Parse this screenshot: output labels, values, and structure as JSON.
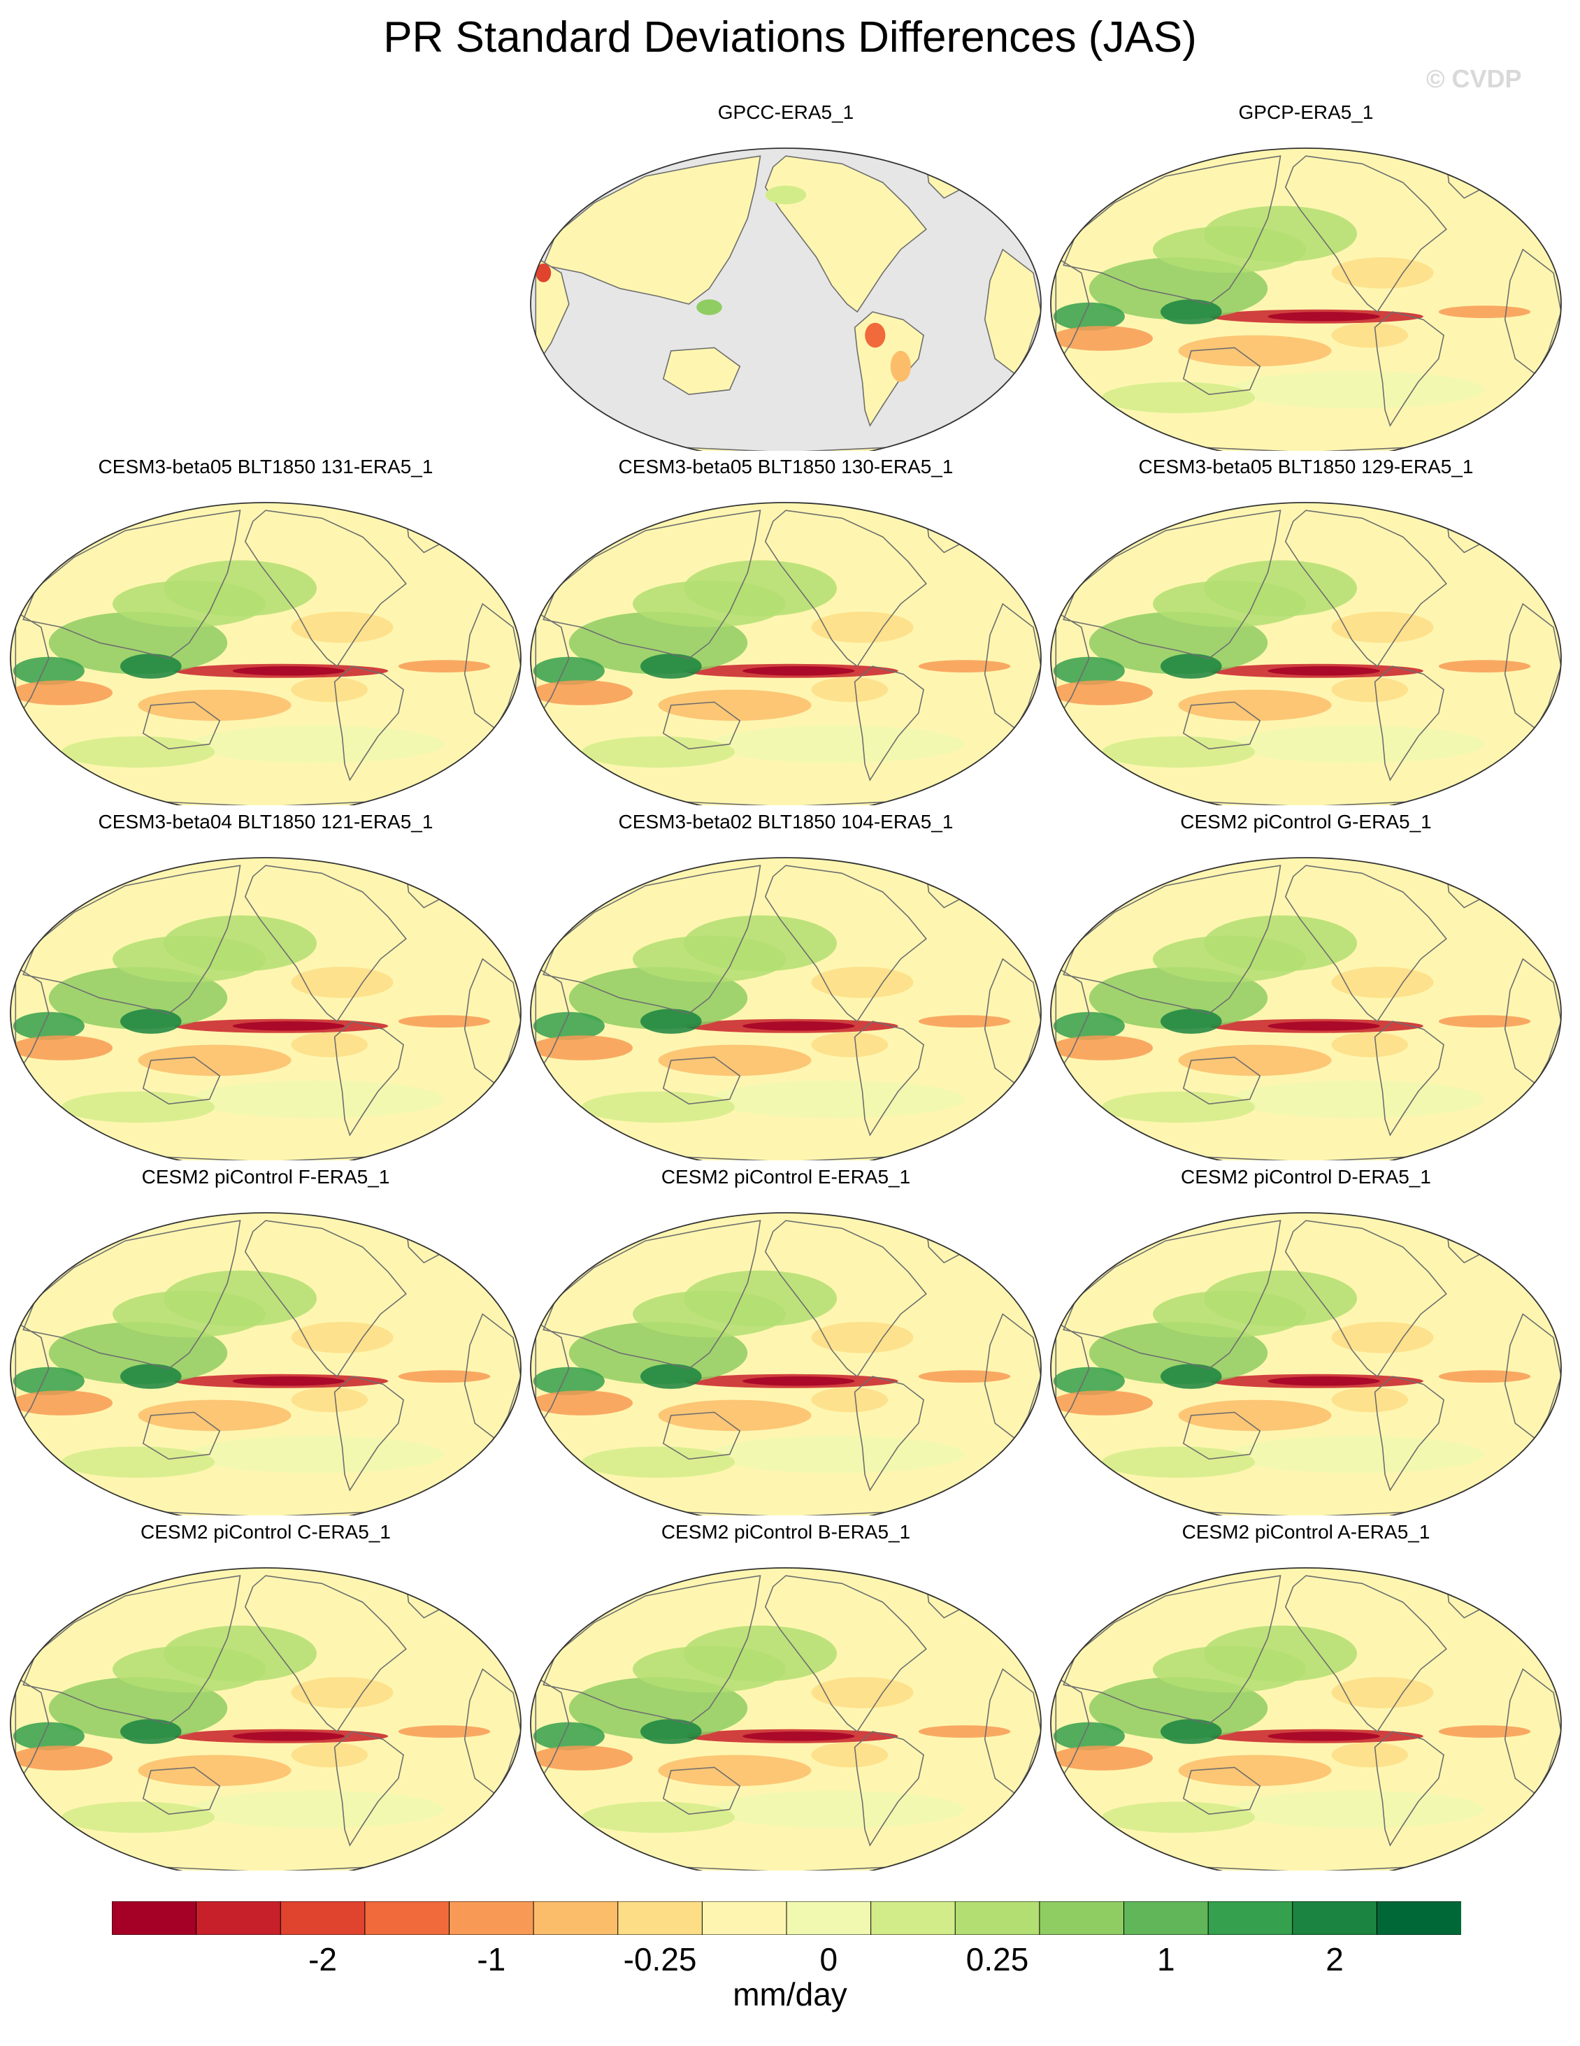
{
  "title": "PR Standard Deviations Differences (JAS)",
  "watermark": "© CVDP",
  "chart_data": {
    "type": "heatmap",
    "title": "PR Standard Deviations Differences (JAS)",
    "projection": "Robinson-like global map, Pacific-centered",
    "panels": [
      {
        "title": "GPCC-ERA5_1",
        "land_only": true
      },
      {
        "title": "GPCP-ERA5_1",
        "land_only": false
      },
      {
        "title": "CESM3-beta05 BLT1850 131-ERA5_1",
        "land_only": false
      },
      {
        "title": "CESM3-beta05 BLT1850 130-ERA5_1",
        "land_only": false
      },
      {
        "title": "CESM3-beta05 BLT1850 129-ERA5_1",
        "land_only": false
      },
      {
        "title": "CESM3-beta04 BLT1850 121-ERA5_1",
        "land_only": false
      },
      {
        "title": "CESM3-beta02 BLT1850 104-ERA5_1",
        "land_only": false
      },
      {
        "title": "CESM2 piControl G-ERA5_1",
        "land_only": false
      },
      {
        "title": "CESM2 piControl F-ERA5_1",
        "land_only": false
      },
      {
        "title": "CESM2 piControl E-ERA5_1",
        "land_only": false
      },
      {
        "title": "CESM2 piControl D-ERA5_1",
        "land_only": false
      },
      {
        "title": "CESM2 piControl C-ERA5_1",
        "land_only": false
      },
      {
        "title": "CESM2 piControl B-ERA5_1",
        "land_only": false
      },
      {
        "title": "CESM2 piControl A-ERA5_1",
        "land_only": false
      }
    ],
    "colorbar": {
      "units": "mm/day",
      "colors": [
        "#a50026",
        "#c8202a",
        "#e0432e",
        "#f06a3c",
        "#f89a55",
        "#fcbd6b",
        "#fddd86",
        "#fef6b0",
        "#f1f8b0",
        "#d3ec8a",
        "#b3de72",
        "#8fcd63",
        "#60b659",
        "#35a04d",
        "#1a8440",
        "#006837"
      ],
      "tick_labels": [
        "-2",
        "-1",
        "-0.25",
        "0",
        "0.25",
        "1",
        "2"
      ],
      "tick_boundaries": [
        2,
        4,
        6,
        8,
        10,
        12,
        14
      ]
    },
    "colors": {
      "land_mask": "#e6e6e6",
      "coast": "#6e6e6e",
      "neutral": "#fef4b0"
    }
  }
}
